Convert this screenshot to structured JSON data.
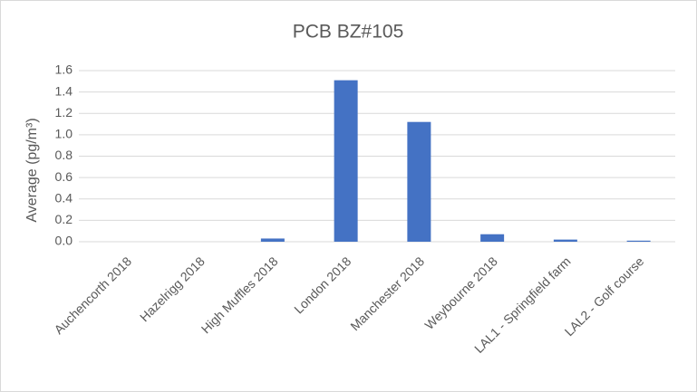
{
  "chart_data": {
    "type": "bar",
    "title": "PCB BZ#105",
    "y_label": "Average (pg/m³)",
    "categories": [
      "Auchencorth 2018",
      "Hazelrigg 2018",
      "High Muffles 2018",
      "London 2018",
      "Manchester 2018",
      "Weybourne 2018",
      "LAL1 - Springfield farm",
      "LAL2 - Golf course"
    ],
    "values": [
      0,
      0,
      0.03,
      1.51,
      1.12,
      0.07,
      0.02,
      0.01
    ],
    "color": "#4472c4",
    "ylim": [
      0,
      1.6
    ],
    "yticks": [
      {
        "value": 0,
        "label": "0.0"
      },
      0.2,
      0.4,
      0.6,
      0.8,
      {
        "value": 1,
        "label": "1.0"
      },
      1.2,
      1.4,
      1.6
    ],
    "grid": true
  }
}
